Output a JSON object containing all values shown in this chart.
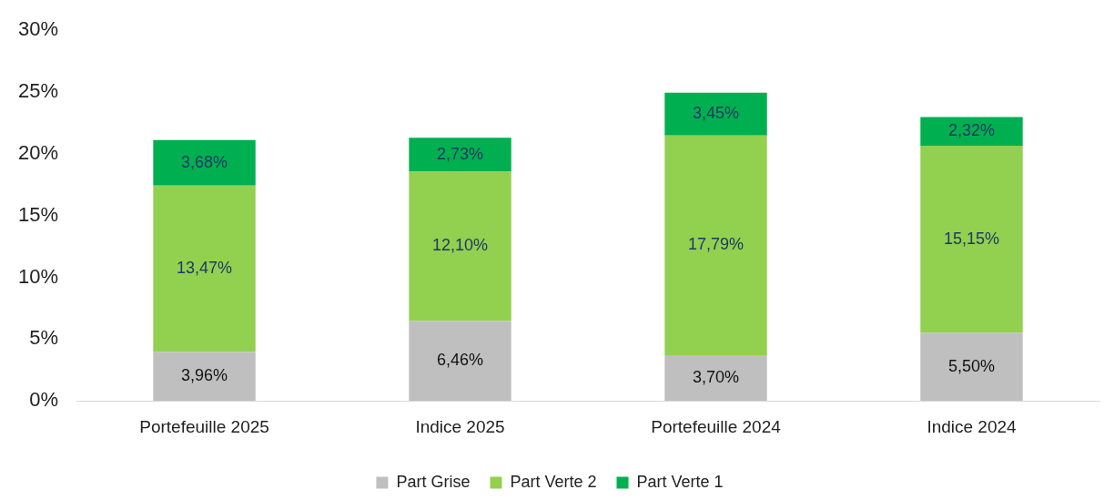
{
  "chart_data": {
    "type": "bar",
    "stacked": true,
    "categories": [
      "Portefeuille 2025",
      "Indice 2025",
      "Portefeuille 2024",
      "Indice 2024"
    ],
    "series": [
      {
        "name": "Part Grise",
        "color": "#bfbfbf",
        "values": [
          3.96,
          6.46,
          3.7,
          5.5
        ],
        "value_labels": [
          "3,96%",
          "6,46%",
          "3,70%",
          "5,50%"
        ]
      },
      {
        "name": "Part Verte 2",
        "color": "#92d050",
        "values": [
          13.47,
          12.1,
          17.79,
          15.15
        ],
        "value_labels": [
          "13,47%",
          "12,10%",
          "17,79%",
          "15,15%"
        ]
      },
      {
        "name": "Part Verte 1",
        "color": "#00b050",
        "values": [
          3.68,
          2.73,
          3.45,
          2.32
        ],
        "value_labels": [
          "3,68%",
          "2,73%",
          "3,45%",
          "2,32%"
        ]
      }
    ],
    "ylim": [
      0,
      30
    ],
    "yticks": [
      {
        "value": 0,
        "label": "0%"
      },
      {
        "value": 5,
        "label": "5%"
      },
      {
        "value": 10,
        "label": "10%"
      },
      {
        "value": 15,
        "label": "15%"
      },
      {
        "value": 20,
        "label": "20%"
      },
      {
        "value": 25,
        "label": "25%"
      },
      {
        "value": 30,
        "label": "30%"
      }
    ],
    "grid": false,
    "legend": "bottom"
  }
}
